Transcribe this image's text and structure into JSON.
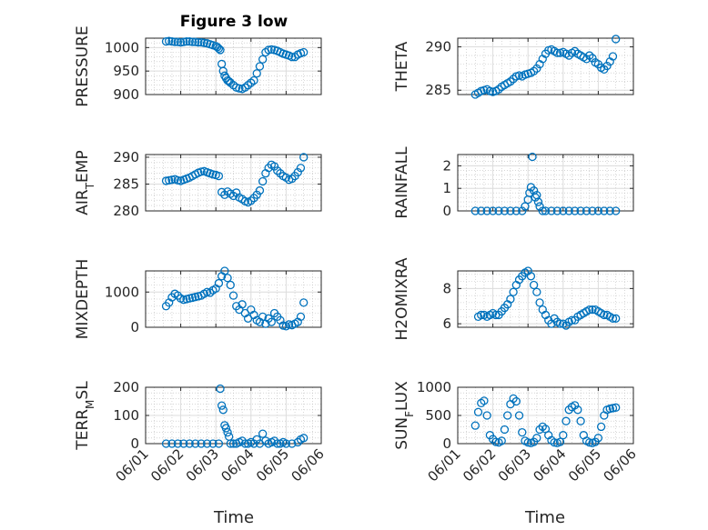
{
  "figure": {
    "title": "Figure 3 low",
    "x_axis_label": "Time",
    "date_ticks": [
      "06/01",
      "06/02",
      "06/03",
      "06/04",
      "06/05",
      "06/06"
    ],
    "marker_color": "#0072BD",
    "marker": "circle"
  },
  "chart_data": [
    {
      "type": "scatter",
      "title": "Figure 3 low",
      "ylabel": "PRESSURE",
      "xlim": [
        "06/01",
        "06/06"
      ],
      "ylim": [
        900,
        1020
      ],
      "yticks": [
        900,
        950,
        1000
      ],
      "grid": true,
      "x": [
        "06/01 14:00",
        "06/01 16:00",
        "06/01 18:00",
        "06/01 20:00",
        "06/01 22:00",
        "06/02 00:00",
        "06/02 02:00",
        "06/02 04:00",
        "06/02 06:00",
        "06/02 08:00",
        "06/02 10:00",
        "06/02 12:00",
        "06/02 14:00",
        "06/02 16:00",
        "06/02 18:00",
        "06/02 20:00",
        "06/02 22:00",
        "06/03 00:00",
        "06/03 01:00",
        "06/03 02:00",
        "06/03 03:00",
        "06/03 04:00",
        "06/03 05:00",
        "06/03 06:00",
        "06/03 07:00",
        "06/03 08:00",
        "06/03 09:00",
        "06/03 10:00",
        "06/03 12:00",
        "06/03 14:00",
        "06/03 16:00",
        "06/03 18:00",
        "06/03 20:00",
        "06/03 22:00",
        "06/04 00:00",
        "06/04 02:00",
        "06/04 04:00",
        "06/04 06:00",
        "06/04 08:00",
        "06/04 10:00",
        "06/04 12:00",
        "06/04 14:00",
        "06/04 16:00",
        "06/04 18:00",
        "06/04 20:00",
        "06/04 22:00",
        "06/05 00:00",
        "06/05 02:00",
        "06/05 04:00",
        "06/05 06:00",
        "06/05 08:00",
        "06/05 10:00",
        "06/05 12:00"
      ],
      "values": [
        1013,
        1014,
        1013,
        1012,
        1012,
        1011,
        1012,
        1013,
        1013,
        1012,
        1012,
        1011,
        1011,
        1010,
        1009,
        1007,
        1005,
        1003,
        1001,
        998,
        995,
        965,
        950,
        940,
        935,
        930,
        928,
        925,
        920,
        915,
        913,
        912,
        915,
        920,
        925,
        930,
        945,
        960,
        975,
        990,
        995,
        996,
        995,
        993,
        990,
        987,
        985,
        983,
        980,
        980,
        985,
        988,
        990
      ]
    },
    {
      "type": "scatter",
      "ylabel": "THETA",
      "xlim": [
        "06/01",
        "06/06"
      ],
      "ylim": [
        284.5,
        291
      ],
      "yticks": [
        285,
        290
      ],
      "grid": true,
      "x": [
        "06/01 12:00",
        "06/01 14:00",
        "06/01 16:00",
        "06/01 18:00",
        "06/01 20:00",
        "06/01 22:00",
        "06/02 00:00",
        "06/02 02:00",
        "06/02 04:00",
        "06/02 06:00",
        "06/02 08:00",
        "06/02 10:00",
        "06/02 12:00",
        "06/02 14:00",
        "06/02 16:00",
        "06/02 18:00",
        "06/02 20:00",
        "06/02 22:00",
        "06/03 00:00",
        "06/03 02:00",
        "06/03 04:00",
        "06/03 06:00",
        "06/03 08:00",
        "06/03 10:00",
        "06/03 12:00",
        "06/03 14:00",
        "06/03 16:00",
        "06/03 18:00",
        "06/03 20:00",
        "06/03 22:00",
        "06/04 00:00",
        "06/04 02:00",
        "06/04 04:00",
        "06/04 06:00",
        "06/04 08:00",
        "06/04 10:00",
        "06/04 12:00",
        "06/04 14:00",
        "06/04 16:00",
        "06/04 18:00",
        "06/04 20:00",
        "06/04 22:00",
        "06/05 00:00",
        "06/05 02:00",
        "06/05 04:00",
        "06/05 06:00",
        "06/05 08:00",
        "06/05 10:00",
        "06/05 12:00"
      ],
      "values": [
        284.5,
        284.7,
        284.9,
        285.0,
        285.1,
        284.9,
        284.8,
        284.9,
        285.1,
        285.4,
        285.6,
        285.8,
        286.0,
        286.3,
        286.6,
        286.7,
        286.6,
        286.8,
        286.9,
        287.0,
        287.2,
        287.5,
        288.0,
        288.6,
        289.2,
        289.6,
        289.7,
        289.5,
        289.3,
        289.3,
        289.4,
        289.2,
        289.0,
        289.3,
        289.5,
        289.2,
        289.0,
        288.8,
        288.6,
        289.0,
        288.7,
        288.2,
        288.0,
        287.6,
        287.4,
        287.8,
        288.3,
        288.9,
        290.9
      ]
    },
    {
      "type": "scatter",
      "ylabel": "AIR_TEMP",
      "xlim": [
        "06/01",
        "06/06"
      ],
      "ylim": [
        280,
        290.5
      ],
      "yticks": [
        280,
        285,
        290
      ],
      "grid": true,
      "x": [
        "06/01 14:00",
        "06/01 16:00",
        "06/01 18:00",
        "06/01 20:00",
        "06/01 22:00",
        "06/02 00:00",
        "06/02 02:00",
        "06/02 04:00",
        "06/02 06:00",
        "06/02 08:00",
        "06/02 10:00",
        "06/02 12:00",
        "06/02 14:00",
        "06/02 16:00",
        "06/02 18:00",
        "06/02 20:00",
        "06/02 22:00",
        "06/03 00:00",
        "06/03 02:00",
        "06/03 04:00",
        "06/03 06:00",
        "06/03 08:00",
        "06/03 10:00",
        "06/03 12:00",
        "06/03 14:00",
        "06/03 16:00",
        "06/03 18:00",
        "06/03 20:00",
        "06/03 22:00",
        "06/04 00:00",
        "06/04 02:00",
        "06/04 04:00",
        "06/04 06:00",
        "06/04 08:00",
        "06/04 10:00",
        "06/04 12:00",
        "06/04 14:00",
        "06/04 16:00",
        "06/04 18:00",
        "06/04 20:00",
        "06/04 22:00",
        "06/05 00:00",
        "06/05 02:00",
        "06/05 04:00",
        "06/05 06:00",
        "06/05 08:00",
        "06/05 10:00",
        "06/05 12:00"
      ],
      "values": [
        285.6,
        285.7,
        285.8,
        285.9,
        285.7,
        285.6,
        285.8,
        286.0,
        286.2,
        286.5,
        286.8,
        287.1,
        287.3,
        287.4,
        287.2,
        287.0,
        286.8,
        286.7,
        286.5,
        283.5,
        283.0,
        283.6,
        283.2,
        282.8,
        283.4,
        282.5,
        282.2,
        281.8,
        281.6,
        281.9,
        282.4,
        283.0,
        283.8,
        285.5,
        287.0,
        288.0,
        288.6,
        288.3,
        287.5,
        287.0,
        286.5,
        286.2,
        285.8,
        286.0,
        286.5,
        287.2,
        288.0,
        290.0
      ]
    },
    {
      "type": "scatter",
      "ylabel": "RAINFALL",
      "xlim": [
        "06/01",
        "06/06"
      ],
      "ylim": [
        0,
        2.5
      ],
      "yticks": [
        0,
        1,
        2
      ],
      "grid": true,
      "x": [
        "06/01 12:00",
        "06/01 16:00",
        "06/01 20:00",
        "06/02 00:00",
        "06/02 04:00",
        "06/02 08:00",
        "06/02 12:00",
        "06/02 16:00",
        "06/02 20:00",
        "06/02 22:00",
        "06/03 00:00",
        "06/03 01:00",
        "06/03 02:00",
        "06/03 03:00",
        "06/03 04:00",
        "06/03 05:00",
        "06/03 06:00",
        "06/03 07:00",
        "06/03 08:00",
        "06/03 10:00",
        "06/03 12:00",
        "06/03 16:00",
        "06/03 20:00",
        "06/04 00:00",
        "06/04 04:00",
        "06/04 08:00",
        "06/04 12:00",
        "06/04 16:00",
        "06/04 20:00",
        "06/05 00:00",
        "06/05 04:00",
        "06/05 08:00",
        "06/05 12:00"
      ],
      "values": [
        0,
        0,
        0,
        0,
        0,
        0,
        0,
        0,
        0,
        0.2,
        0.5,
        0.8,
        1.05,
        2.4,
        0.9,
        0.6,
        0.7,
        0.4,
        0.2,
        0,
        0,
        0,
        0,
        0,
        0,
        0,
        0,
        0,
        0,
        0,
        0,
        0,
        0
      ]
    },
    {
      "type": "scatter",
      "ylabel": "MIXDEPTH",
      "xlim": [
        "06/01",
        "06/06"
      ],
      "ylim": [
        0,
        1600
      ],
      "yticks": [
        0,
        1000
      ],
      "grid": true,
      "x": [
        "06/01 14:00",
        "06/01 16:00",
        "06/01 18:00",
        "06/01 20:00",
        "06/01 22:00",
        "06/02 00:00",
        "06/02 02:00",
        "06/02 04:00",
        "06/02 06:00",
        "06/02 08:00",
        "06/02 10:00",
        "06/02 12:00",
        "06/02 14:00",
        "06/02 16:00",
        "06/02 18:00",
        "06/02 20:00",
        "06/02 22:00",
        "06/03 00:00",
        "06/03 02:00",
        "06/03 04:00",
        "06/03 06:00",
        "06/03 08:00",
        "06/03 10:00",
        "06/03 12:00",
        "06/03 14:00",
        "06/03 16:00",
        "06/03 18:00",
        "06/03 20:00",
        "06/03 22:00",
        "06/04 00:00",
        "06/04 02:00",
        "06/04 04:00",
        "06/04 06:00",
        "06/04 08:00",
        "06/04 10:00",
        "06/04 12:00",
        "06/04 14:00",
        "06/04 16:00",
        "06/04 18:00",
        "06/04 20:00",
        "06/04 22:00",
        "06/05 00:00",
        "06/05 02:00",
        "06/05 04:00",
        "06/05 06:00",
        "06/05 08:00",
        "06/05 10:00",
        "06/05 12:00"
      ],
      "values": [
        600,
        700,
        850,
        950,
        900,
        820,
        780,
        800,
        820,
        840,
        860,
        880,
        900,
        950,
        1000,
        980,
        1050,
        1100,
        1250,
        1450,
        1600,
        1400,
        1200,
        900,
        600,
        500,
        650,
        400,
        250,
        500,
        350,
        200,
        150,
        300,
        100,
        250,
        150,
        400,
        300,
        200,
        50,
        30,
        80,
        60,
        100,
        150,
        300,
        700
      ]
    },
    {
      "type": "scatter",
      "ylabel": "H2OMIXRA",
      "xlim": [
        "06/01",
        "06/06"
      ],
      "ylim": [
        5.8,
        9
      ],
      "yticks": [
        6,
        8
      ],
      "grid": true,
      "x": [
        "06/01 14:00",
        "06/01 16:00",
        "06/01 18:00",
        "06/01 20:00",
        "06/01 22:00",
        "06/02 00:00",
        "06/02 02:00",
        "06/02 04:00",
        "06/02 06:00",
        "06/02 08:00",
        "06/02 10:00",
        "06/02 12:00",
        "06/02 14:00",
        "06/02 16:00",
        "06/02 18:00",
        "06/02 20:00",
        "06/02 22:00",
        "06/03 00:00",
        "06/03 02:00",
        "06/03 04:00",
        "06/03 06:00",
        "06/03 08:00",
        "06/03 10:00",
        "06/03 12:00",
        "06/03 14:00",
        "06/03 16:00",
        "06/03 18:00",
        "06/03 20:00",
        "06/03 22:00",
        "06/04 00:00",
        "06/04 02:00",
        "06/04 04:00",
        "06/04 06:00",
        "06/04 08:00",
        "06/04 10:00",
        "06/04 12:00",
        "06/04 14:00",
        "06/04 16:00",
        "06/04 18:00",
        "06/04 20:00",
        "06/04 22:00",
        "06/05 00:00",
        "06/05 02:00",
        "06/05 04:00",
        "06/05 06:00",
        "06/05 08:00",
        "06/05 10:00",
        "06/05 12:00"
      ],
      "values": [
        6.4,
        6.5,
        6.5,
        6.4,
        6.5,
        6.6,
        6.5,
        6.5,
        6.7,
        6.9,
        7.1,
        7.4,
        7.8,
        8.2,
        8.5,
        8.7,
        8.9,
        9.0,
        8.7,
        8.2,
        7.8,
        7.2,
        6.8,
        6.5,
        6.2,
        6.0,
        6.3,
        6.1,
        6.0,
        6.0,
        5.9,
        6.1,
        6.2,
        6.2,
        6.4,
        6.5,
        6.6,
        6.7,
        6.8,
        6.8,
        6.8,
        6.7,
        6.6,
        6.5,
        6.5,
        6.4,
        6.3,
        6.3
      ]
    },
    {
      "type": "scatter",
      "ylabel": "TERR_MSL",
      "xlim": [
        "06/01",
        "06/06"
      ],
      "ylim": [
        0,
        200
      ],
      "yticks": [
        0,
        100,
        200
      ],
      "grid": true,
      "x": [
        "06/01 14:00",
        "06/01 18:00",
        "06/01 22:00",
        "06/02 02:00",
        "06/02 06:00",
        "06/02 10:00",
        "06/02 14:00",
        "06/02 18:00",
        "06/02 22:00",
        "06/03 02:00",
        "06/03 03:00",
        "06/03 04:00",
        "06/03 05:00",
        "06/03 06:00",
        "06/03 07:00",
        "06/03 08:00",
        "06/03 09:00",
        "06/03 10:00",
        "06/03 12:00",
        "06/03 14:00",
        "06/03 16:00",
        "06/03 18:00",
        "06/03 20:00",
        "06/03 22:00",
        "06/04 00:00",
        "06/04 02:00",
        "06/04 04:00",
        "06/04 06:00",
        "06/04 08:00",
        "06/04 10:00",
        "06/04 12:00",
        "06/04 14:00",
        "06/04 16:00",
        "06/04 18:00",
        "06/04 20:00",
        "06/04 22:00",
        "06/05 00:00",
        "06/05 04:00",
        "06/05 08:00",
        "06/05 10:00",
        "06/05 12:00"
      ],
      "values": [
        0,
        0,
        0,
        0,
        0,
        0,
        0,
        0,
        0,
        0,
        195,
        135,
        120,
        65,
        55,
        40,
        25,
        0,
        0,
        0,
        5,
        10,
        0,
        0,
        5,
        0,
        15,
        0,
        35,
        10,
        0,
        5,
        10,
        0,
        0,
        5,
        0,
        0,
        5,
        15,
        20
      ]
    },
    {
      "type": "scatter",
      "ylabel": "SUN_FLUX",
      "xlim": [
        "06/01",
        "06/06"
      ],
      "ylim": [
        0,
        1000
      ],
      "yticks": [
        0,
        500,
        1000
      ],
      "grid": true,
      "x": [
        "06/01 12:00",
        "06/01 14:00",
        "06/01 16:00",
        "06/01 18:00",
        "06/01 20:00",
        "06/01 22:00",
        "06/02 00:00",
        "06/02 02:00",
        "06/02 04:00",
        "06/02 06:00",
        "06/02 08:00",
        "06/02 10:00",
        "06/02 12:00",
        "06/02 14:00",
        "06/02 16:00",
        "06/02 18:00",
        "06/02 20:00",
        "06/02 22:00",
        "06/03 00:00",
        "06/03 02:00",
        "06/03 04:00",
        "06/03 06:00",
        "06/03 08:00",
        "06/03 10:00",
        "06/03 12:00",
        "06/03 14:00",
        "06/03 16:00",
        "06/03 18:00",
        "06/03 20:00",
        "06/03 22:00",
        "06/04 00:00",
        "06/04 02:00",
        "06/04 04:00",
        "06/04 06:00",
        "06/04 08:00",
        "06/04 10:00",
        "06/04 12:00",
        "06/04 14:00",
        "06/04 16:00",
        "06/04 18:00",
        "06/04 20:00",
        "06/04 22:00",
        "06/05 00:00",
        "06/05 02:00",
        "06/05 04:00",
        "06/05 06:00",
        "06/05 08:00",
        "06/05 10:00",
        "06/05 12:00"
      ],
      "values": [
        320,
        560,
        720,
        760,
        500,
        150,
        80,
        30,
        20,
        50,
        250,
        500,
        700,
        800,
        750,
        500,
        200,
        50,
        20,
        10,
        30,
        100,
        250,
        300,
        260,
        150,
        60,
        20,
        10,
        30,
        150,
        400,
        600,
        650,
        680,
        600,
        400,
        150,
        50,
        20,
        10,
        30,
        100,
        300,
        500,
        600,
        620,
        630,
        640
      ]
    }
  ]
}
